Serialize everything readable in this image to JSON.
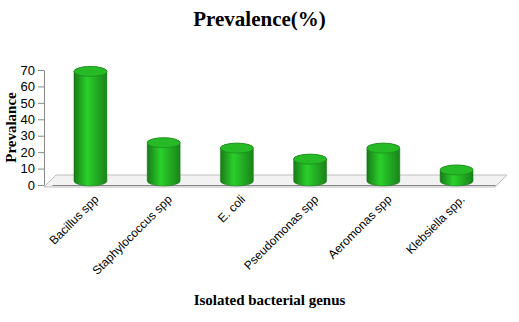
{
  "chart_data": {
    "type": "bar",
    "title": "Prevalence(%)",
    "x_label": "Isolated bacterial genus",
    "y_label": "Prevalance",
    "categories": [
      "Bacillus spp",
      "Staphylococcus spp",
      "E. coli",
      "Pseudomonas spp",
      "Aeromonas spp",
      "Klebsiella spp."
    ],
    "values": [
      66.7,
      23.3,
      20,
      13.3,
      20,
      6.7
    ],
    "color": "#22a822",
    "ylim": [
      0,
      70
    ],
    "yticks": [
      0,
      10,
      20,
      30,
      40,
      50,
      60,
      70
    ],
    "grid": false
  }
}
